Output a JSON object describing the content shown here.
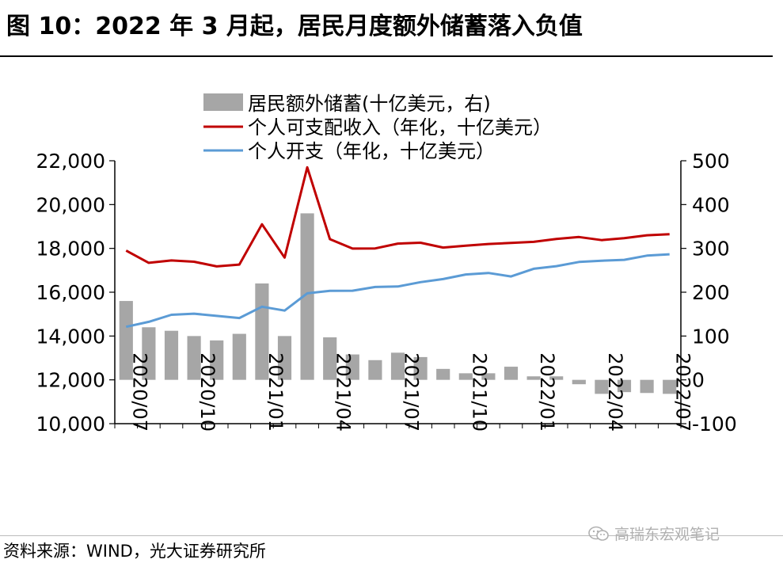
{
  "header": {
    "title": "图 10：2022 年 3 月起，居民月度额外储蓄落入负值"
  },
  "footer": {
    "source": "资料来源：WIND，光大证券研究所",
    "watermark": "高瑞东宏观笔记",
    "watermark_icon": "wechat-icon"
  },
  "colors": {
    "bar": "#a6a6a6",
    "income_line": "#c00000",
    "spending_line": "#5b9bd5",
    "axis": "#000000"
  },
  "chart_data": {
    "type": "bar+line",
    "legend_placement": "top-center",
    "categories": [
      "2020/07",
      "2020/08",
      "2020/09",
      "2020/10",
      "2020/11",
      "2020/12",
      "2021/01",
      "2021/02",
      "2021/03",
      "2021/04",
      "2021/05",
      "2021/06",
      "2021/07",
      "2021/08",
      "2021/09",
      "2021/10",
      "2021/11",
      "2021/12",
      "2022/01",
      "2022/02",
      "2022/03",
      "2022/04",
      "2022/05",
      "2022/06",
      "2022/07"
    ],
    "x_tick_labels": [
      "2020/07",
      "2020/10",
      "2021/01",
      "2021/04",
      "2021/07",
      "2021/10",
      "2022/01",
      "2022/04",
      "2022/07"
    ],
    "left_axis": {
      "min": 10000,
      "max": 22000,
      "step": 2000,
      "tick_labels": [
        "10,000",
        "12,000",
        "14,000",
        "16,000",
        "18,000",
        "20,000",
        "22,000"
      ]
    },
    "right_axis": {
      "min": -100,
      "max": 500,
      "step": 100,
      "tick_labels": [
        "-100",
        "0",
        "100",
        "200",
        "300",
        "400",
        "500"
      ]
    },
    "series": [
      {
        "name": "居民额外储蓄(十亿美元，右)",
        "type": "bar",
        "axis": "right",
        "values": [
          180,
          120,
          112,
          100,
          90,
          105,
          220,
          100,
          380,
          97,
          58,
          45,
          62,
          52,
          25,
          15,
          15,
          30,
          8,
          8,
          -10,
          -32,
          -28,
          -30,
          -32
        ]
      },
      {
        "name": "个人可支配收入（年化，十亿美元）",
        "type": "line",
        "axis": "left",
        "values": [
          17900,
          17340,
          17450,
          17390,
          17180,
          17260,
          19100,
          17580,
          21700,
          18420,
          17990,
          18000,
          18220,
          18260,
          18040,
          18120,
          18200,
          18250,
          18300,
          18430,
          18520,
          18380,
          18470,
          18600,
          18650
        ]
      },
      {
        "name": "个人开支（年化，十亿美元）",
        "type": "line",
        "axis": "left",
        "values": [
          14420,
          14650,
          14970,
          15020,
          14920,
          14820,
          15340,
          15160,
          15950,
          16060,
          16070,
          16240,
          16260,
          16460,
          16600,
          16810,
          16880,
          16720,
          17070,
          17190,
          17380,
          17440,
          17480,
          17670,
          17730
        ]
      }
    ]
  }
}
